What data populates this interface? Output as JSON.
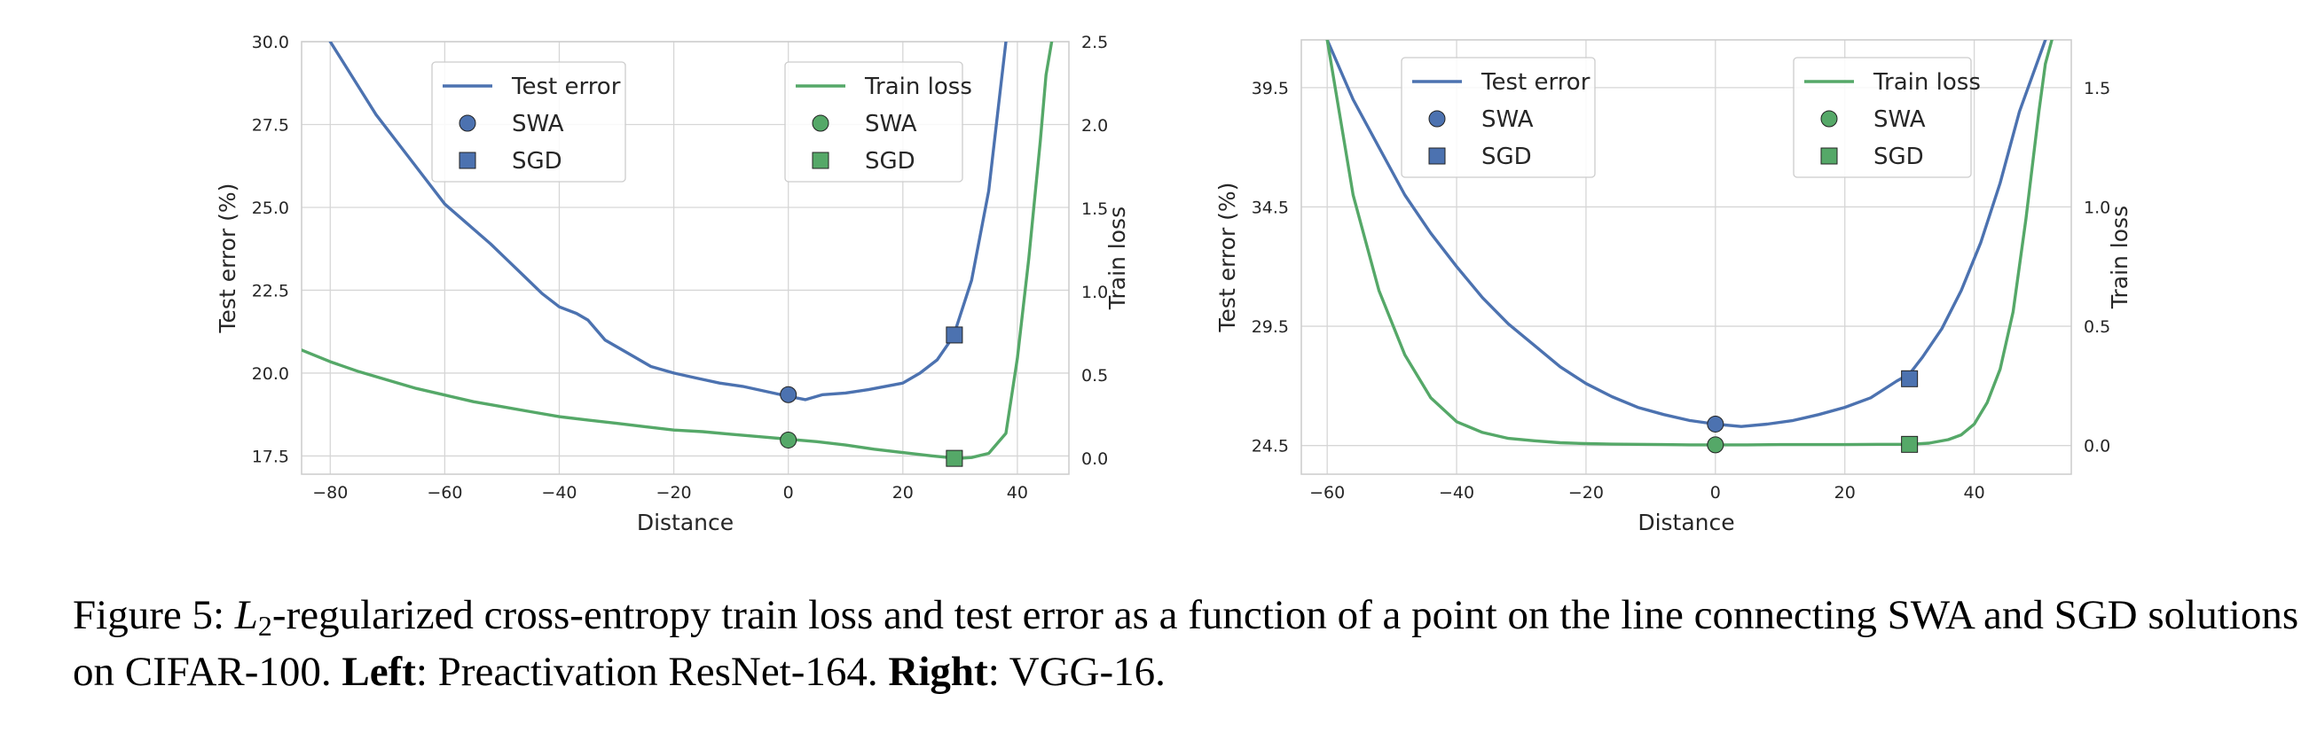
{
  "colors": {
    "test": "#4c72b0",
    "train": "#55a868",
    "grid": "#d6d6d6",
    "frame": "#cccccc"
  },
  "chart_data": [
    {
      "type": "line",
      "xlabel": "Distance",
      "ylabel_left": "Test error (%)",
      "ylabel_right": "Train loss",
      "xlim": [
        -85,
        49
      ],
      "ylim_left": [
        16.95,
        30.0
      ],
      "ylim_right": [
        -0.095,
        2.5
      ],
      "xticks": [
        -80,
        -60,
        -40,
        -20,
        0,
        20,
        40
      ],
      "xtick_labels": [
        "−80",
        "−60",
        "−40",
        "−20",
        "0",
        "20",
        "40"
      ],
      "yticks_left": [
        17.5,
        20.0,
        22.5,
        25.0,
        27.5,
        30.0
      ],
      "yticks_left_labels": [
        "17.5",
        "20.0",
        "22.5",
        "25.0",
        "27.5",
        "30.0"
      ],
      "yticks_right": [
        0.0,
        0.5,
        1.0,
        1.5,
        2.0,
        2.5
      ],
      "yticks_right_labels": [
        "0.0",
        "0.5",
        "1.0",
        "1.5",
        "2.0",
        "2.5"
      ],
      "grid": true,
      "series": [
        {
          "name": "Test error",
          "axis": "left",
          "color": "test",
          "x": [
            -80,
            -76,
            -72,
            -68,
            -64,
            -60,
            -56,
            -52,
            -49,
            -46,
            -43,
            -40,
            -37,
            -35,
            -32,
            -28,
            -24,
            -20,
            -16,
            -12,
            -8,
            -4,
            0,
            3,
            6,
            10,
            14,
            20,
            23,
            26,
            28,
            29,
            32,
            35,
            37,
            38
          ],
          "y": [
            30.0,
            28.9,
            27.8,
            26.9,
            26.0,
            25.1,
            24.5,
            23.9,
            23.4,
            22.9,
            22.4,
            22.0,
            21.8,
            21.6,
            21.0,
            20.6,
            20.2,
            20.0,
            19.85,
            19.7,
            19.6,
            19.45,
            19.3,
            19.2,
            19.35,
            19.4,
            19.5,
            19.7,
            20.0,
            20.4,
            20.9,
            21.2,
            22.8,
            25.5,
            28.5,
            30.0
          ]
        },
        {
          "name": "Train loss",
          "axis": "right",
          "color": "train",
          "x": [
            -85,
            -80,
            -75,
            -70,
            -65,
            -60,
            -55,
            -50,
            -45,
            -40,
            -35,
            -30,
            -25,
            -20,
            -15,
            -10,
            -5,
            0,
            5,
            10,
            15,
            20,
            25,
            28,
            30,
            32,
            35,
            38,
            40,
            42,
            44,
            45,
            46
          ],
          "y": [
            0.65,
            0.58,
            0.52,
            0.47,
            0.42,
            0.38,
            0.34,
            0.31,
            0.28,
            0.25,
            0.23,
            0.21,
            0.19,
            0.17,
            0.16,
            0.145,
            0.13,
            0.115,
            0.1,
            0.08,
            0.055,
            0.035,
            0.015,
            0.005,
            0.0,
            0.005,
            0.03,
            0.15,
            0.6,
            1.2,
            1.9,
            2.3,
            2.5
          ]
        }
      ],
      "markers": [
        {
          "name": "SWA",
          "shape": "circle",
          "color": "test",
          "axis": "left",
          "x": 0,
          "y": 19.35
        },
        {
          "name": "SGD",
          "shape": "square",
          "color": "test",
          "axis": "left",
          "x": 29,
          "y": 21.15
        },
        {
          "name": "SWA",
          "shape": "circle",
          "color": "train",
          "axis": "right",
          "x": 0,
          "y": 0.11
        },
        {
          "name": "SGD",
          "shape": "square",
          "color": "train",
          "axis": "right",
          "x": 29,
          "y": 0.0
        }
      ],
      "legends": [
        {
          "placement": "top-center-left",
          "items": [
            {
              "label": "Test error",
              "shape": "line",
              "color": "test"
            },
            {
              "label": "SWA",
              "shape": "circle",
              "color": "test"
            },
            {
              "label": "SGD",
              "shape": "square",
              "color": "test"
            }
          ]
        },
        {
          "placement": "top-center-right",
          "items": [
            {
              "label": "Train loss",
              "shape": "line",
              "color": "train"
            },
            {
              "label": "SWA",
              "shape": "circle",
              "color": "train"
            },
            {
              "label": "SGD",
              "shape": "square",
              "color": "train"
            }
          ]
        }
      ]
    },
    {
      "type": "line",
      "xlabel": "Distance",
      "ylabel_left": "Test error (%)",
      "ylabel_right": "Train loss",
      "xlim": [
        -64,
        55
      ],
      "ylim_left": [
        23.3,
        41.5
      ],
      "ylim_right": [
        -0.12,
        1.7
      ],
      "xticks": [
        -60,
        -40,
        -20,
        0,
        20,
        40
      ],
      "xtick_labels": [
        "−60",
        "−40",
        "−20",
        "0",
        "20",
        "40"
      ],
      "yticks_left": [
        24.5,
        29.5,
        34.5,
        39.5
      ],
      "yticks_left_labels": [
        "24.5",
        "29.5",
        "34.5",
        "39.5"
      ],
      "yticks_right": [
        0.0,
        0.5,
        1.0,
        1.5
      ],
      "yticks_right_labels": [
        "0.0",
        "0.5",
        "1.0",
        "1.5"
      ],
      "grid": true,
      "series": [
        {
          "name": "Test error",
          "axis": "left",
          "color": "test",
          "x": [
            -60,
            -56,
            -52,
            -48,
            -44,
            -40,
            -36,
            -32,
            -28,
            -24,
            -20,
            -16,
            -12,
            -8,
            -4,
            0,
            4,
            8,
            12,
            16,
            20,
            24,
            28,
            30,
            32,
            35,
            38,
            41,
            44,
            47,
            49,
            51
          ],
          "y": [
            41.5,
            39.0,
            37.0,
            35.0,
            33.4,
            32.0,
            30.7,
            29.6,
            28.7,
            27.8,
            27.1,
            26.55,
            26.1,
            25.8,
            25.55,
            25.4,
            25.3,
            25.4,
            25.55,
            25.8,
            26.1,
            26.5,
            27.2,
            27.5,
            28.2,
            29.4,
            31.0,
            33.0,
            35.5,
            38.5,
            40.0,
            41.5
          ]
        },
        {
          "name": "Train loss",
          "axis": "right",
          "color": "train",
          "x": [
            -60,
            -56,
            -52,
            -48,
            -44,
            -40,
            -36,
            -32,
            -28,
            -24,
            -20,
            -16,
            -12,
            -8,
            -4,
            0,
            5,
            10,
            15,
            20,
            25,
            30,
            33,
            36,
            38,
            40,
            42,
            44,
            46,
            48,
            50,
            51,
            52
          ],
          "y": [
            1.7,
            1.05,
            0.65,
            0.38,
            0.2,
            0.1,
            0.055,
            0.03,
            0.02,
            0.012,
            0.008,
            0.006,
            0.005,
            0.004,
            0.003,
            0.003,
            0.003,
            0.004,
            0.004,
            0.004,
            0.005,
            0.005,
            0.01,
            0.025,
            0.045,
            0.09,
            0.18,
            0.32,
            0.56,
            0.95,
            1.4,
            1.6,
            1.7
          ]
        }
      ],
      "markers": [
        {
          "name": "SWA",
          "shape": "circle",
          "color": "test",
          "axis": "left",
          "x": 0,
          "y": 25.4
        },
        {
          "name": "SGD",
          "shape": "square",
          "color": "test",
          "axis": "left",
          "x": 30,
          "y": 27.3
        },
        {
          "name": "SWA",
          "shape": "circle",
          "color": "train",
          "axis": "right",
          "x": 0,
          "y": 0.003
        },
        {
          "name": "SGD",
          "shape": "square",
          "color": "train",
          "axis": "right",
          "x": 30,
          "y": 0.005
        }
      ],
      "legends": [
        {
          "placement": "top-left",
          "items": [
            {
              "label": "Test error",
              "shape": "line",
              "color": "test"
            },
            {
              "label": "SWA",
              "shape": "circle",
              "color": "test"
            },
            {
              "label": "SGD",
              "shape": "square",
              "color": "test"
            }
          ]
        },
        {
          "placement": "top-right",
          "items": [
            {
              "label": "Train loss",
              "shape": "line",
              "color": "train"
            },
            {
              "label": "SWA",
              "shape": "circle",
              "color": "train"
            },
            {
              "label": "SGD",
              "shape": "square",
              "color": "train"
            }
          ]
        }
      ]
    }
  ],
  "caption": {
    "figure_label": "Figure 5:",
    "symbol": "L",
    "subscript": "2",
    "text1": "-regularized cross-entropy train loss and test error as a function of a point on the line connecting SWA and SGD solutions on CIFAR-100.",
    "left_label": "Left",
    "left_text": ": Preactivation ResNet-164.",
    "right_label": "Right",
    "right_text": ": VGG-16."
  }
}
